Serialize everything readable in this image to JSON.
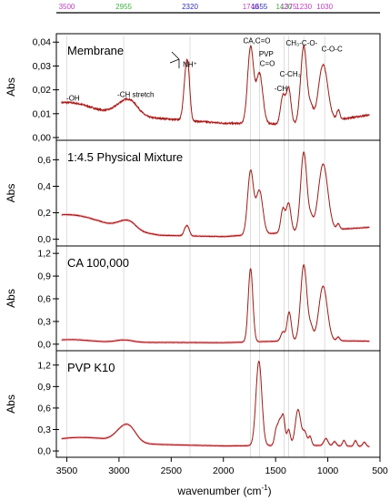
{
  "colors": {
    "spectrum": "#9b1c14",
    "band": "#f7c8d2",
    "frame": "#000000"
  },
  "top_wavenumbers": [
    {
      "text": "3500",
      "x": 3500,
      "color": "#c040c0"
    },
    {
      "text": "2955",
      "x": 2955,
      "color": "#40b040"
    },
    {
      "text": "2320",
      "x": 2320,
      "color": "#3030b0"
    },
    {
      "text": "1740",
      "x": 1740,
      "color": "#c040c0"
    },
    {
      "text": "1655",
      "x": 1655,
      "color": "#3030b0"
    },
    {
      "text": "1420",
      "x": 1420,
      "color": "#40b040"
    },
    {
      "text": "1375",
      "x": 1375,
      "color": "#c040c0"
    },
    {
      "text": "1230",
      "x": 1230,
      "color": "#c040c0"
    },
    {
      "text": "1030",
      "x": 1030,
      "color": "#c040c0"
    }
  ],
  "ylabel": "Abs",
  "xlabel": "wavenumber (cm",
  "xlabel_sup": "-1",
  "xlabel_end": ")",
  "chart_data": [
    {
      "type": "line",
      "title": "Membrane",
      "xlim": [
        3600,
        500
      ],
      "ylim": [
        0,
        0.042
      ],
      "yticks": [
        "0,00",
        "0,01",
        "0,02",
        "0,03",
        "0,04"
      ],
      "ytick_values": [
        0,
        0.01,
        0.02,
        0.03,
        0.04
      ],
      "annotations": [
        {
          "text": "-OH",
          "x": 3440,
          "y": 0.0155
        },
        {
          "text": "-CH stretch",
          "x": 2840,
          "y": 0.017
        },
        {
          "text": "NH⁺",
          "x": 2320,
          "y": 0.0295
        },
        {
          "text": "CA,C=O",
          "x": 1680,
          "y": 0.0395
        },
        {
          "text": "PVP",
          "x": 1590,
          "y": 0.034
        },
        {
          "text": "C=O",
          "x": 1580,
          "y": 0.03
        },
        {
          "text": "C-CH₃",
          "x": 1360,
          "y": 0.0255
        },
        {
          "text": "-CH",
          "x": 1450,
          "y": 0.0195
        },
        {
          "text": "CH₃-C-O-",
          "x": 1250,
          "y": 0.0385
        },
        {
          "text": "C-O-C",
          "x": 960,
          "y": 0.036
        }
      ],
      "peaks": [
        {
          "x": 3450,
          "w": 230,
          "h": 0.004
        },
        {
          "x": 2950,
          "w": 90,
          "h": 0.005
        },
        {
          "x": 2870,
          "w": 70,
          "h": 0.003
        },
        {
          "x": 2360,
          "w": 22,
          "h": 0.018
        },
        {
          "x": 2335,
          "w": 18,
          "h": 0.013
        },
        {
          "x": 1740,
          "w": 28,
          "h": 0.032
        },
        {
          "x": 1655,
          "w": 32,
          "h": 0.021
        },
        {
          "x": 1430,
          "w": 22,
          "h": 0.012
        },
        {
          "x": 1375,
          "w": 22,
          "h": 0.015
        },
        {
          "x": 1230,
          "w": 30,
          "h": 0.033
        },
        {
          "x": 1160,
          "w": 20,
          "h": 0.006
        },
        {
          "x": 1045,
          "w": 45,
          "h": 0.024
        },
        {
          "x": 900,
          "w": 15,
          "h": 0.004
        }
      ],
      "baseline": [
        [
          3550,
          0.011
        ],
        [
          3200,
          0.0095
        ],
        [
          2600,
          0.008
        ],
        [
          2000,
          0.006
        ],
        [
          1200,
          0.0055
        ],
        [
          600,
          0.0095
        ]
      ],
      "noise": 0.0006
    },
    {
      "type": "line",
      "title": "1:4.5 Physical Mixture",
      "xlim": [
        3600,
        500
      ],
      "ylim": [
        -0.03,
        0.72
      ],
      "yticks": [
        "0,0",
        "0,2",
        "0,4",
        "0,6"
      ],
      "ytick_values": [
        0,
        0.2,
        0.4,
        0.6
      ],
      "peaks": [
        {
          "x": 3450,
          "w": 240,
          "h": 0.07
        },
        {
          "x": 2950,
          "w": 80,
          "h": 0.05
        },
        {
          "x": 2880,
          "w": 60,
          "h": 0.03
        },
        {
          "x": 2360,
          "w": 18,
          "h": 0.06
        },
        {
          "x": 2335,
          "w": 16,
          "h": 0.04
        },
        {
          "x": 1740,
          "w": 28,
          "h": 0.48
        },
        {
          "x": 1655,
          "w": 32,
          "h": 0.33
        },
        {
          "x": 1430,
          "w": 20,
          "h": 0.18
        },
        {
          "x": 1375,
          "w": 22,
          "h": 0.22
        },
        {
          "x": 1230,
          "w": 30,
          "h": 0.6
        },
        {
          "x": 1160,
          "w": 20,
          "h": 0.08
        },
        {
          "x": 1045,
          "w": 45,
          "h": 0.5
        },
        {
          "x": 900,
          "w": 14,
          "h": 0.04
        }
      ],
      "baseline": [
        [
          3550,
          0.12
        ],
        [
          3200,
          0.1
        ],
        [
          2600,
          0.03
        ],
        [
          2000,
          0.02
        ],
        [
          1200,
          0.06
        ],
        [
          600,
          0.09
        ]
      ],
      "noise": 0.004
    },
    {
      "type": "line",
      "title": "CA 100,000",
      "xlim": [
        3600,
        500
      ],
      "ylim": [
        -0.05,
        1.25
      ],
      "yticks": [
        "0,0",
        "0,3",
        "0,6",
        "0,9",
        "1,2"
      ],
      "ytick_values": [
        0,
        0.3,
        0.6,
        0.9,
        1.2
      ],
      "peaks": [
        {
          "x": 3480,
          "w": 200,
          "h": 0.04
        },
        {
          "x": 2950,
          "w": 80,
          "h": 0.03
        },
        {
          "x": 1740,
          "w": 22,
          "h": 0.97
        },
        {
          "x": 1430,
          "w": 20,
          "h": 0.12
        },
        {
          "x": 1370,
          "w": 20,
          "h": 0.38
        },
        {
          "x": 1230,
          "w": 30,
          "h": 1.0
        },
        {
          "x": 1160,
          "w": 20,
          "h": 0.15
        },
        {
          "x": 1045,
          "w": 40,
          "h": 0.72
        },
        {
          "x": 900,
          "w": 14,
          "h": 0.05
        }
      ],
      "baseline": [
        [
          3550,
          0.02
        ],
        [
          3000,
          0.025
        ],
        [
          2000,
          0.02
        ],
        [
          1200,
          0.05
        ],
        [
          600,
          0.04
        ]
      ],
      "noise": 0.004
    },
    {
      "type": "line",
      "title": "PVP K10",
      "xlim": [
        3600,
        500
      ],
      "ylim": [
        -0.05,
        1.35
      ],
      "yticks": [
        "0,0",
        "0,3",
        "0,6",
        "0,9",
        "1,2"
      ],
      "ytick_values": [
        0,
        0.3,
        0.6,
        0.9,
        1.2
      ],
      "peaks": [
        {
          "x": 3420,
          "w": 260,
          "h": 0.07
        },
        {
          "x": 2950,
          "w": 80,
          "h": 0.2
        },
        {
          "x": 2880,
          "w": 60,
          "h": 0.08
        },
        {
          "x": 1660,
          "w": 28,
          "h": 1.18
        },
        {
          "x": 1495,
          "w": 16,
          "h": 0.2
        },
        {
          "x": 1460,
          "w": 18,
          "h": 0.32
        },
        {
          "x": 1425,
          "w": 16,
          "h": 0.38
        },
        {
          "x": 1375,
          "w": 16,
          "h": 0.22
        },
        {
          "x": 1285,
          "w": 26,
          "h": 0.5
        },
        {
          "x": 1220,
          "w": 20,
          "h": 0.18
        },
        {
          "x": 1170,
          "w": 14,
          "h": 0.12
        },
        {
          "x": 1018,
          "w": 20,
          "h": 0.1
        },
        {
          "x": 935,
          "w": 16,
          "h": 0.06
        },
        {
          "x": 845,
          "w": 14,
          "h": 0.08
        },
        {
          "x": 735,
          "w": 14,
          "h": 0.08
        },
        {
          "x": 650,
          "w": 16,
          "h": 0.06
        }
      ],
      "baseline": [
        [
          3550,
          0.11
        ],
        [
          3200,
          0.13
        ],
        [
          2600,
          0.09
        ],
        [
          2000,
          0.07
        ],
        [
          1200,
          0.08
        ],
        [
          600,
          0.06
        ]
      ],
      "noise": 0.004
    }
  ],
  "xticks": [
    "3500",
    "3000",
    "2500",
    "2000",
    "1500",
    "1000",
    "500"
  ],
  "xtick_values": [
    3500,
    3000,
    2500,
    2000,
    1500,
    1000,
    500
  ]
}
